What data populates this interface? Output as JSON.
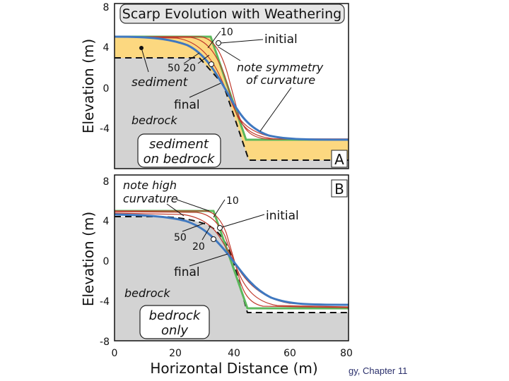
{
  "title": "Scarp Evolution with Weathering",
  "footer": "gy, Chapter 11",
  "x_axis": {
    "label": "Horizontal Distance (m)",
    "ticks": [
      "0",
      "20",
      "40",
      "60",
      "80"
    ]
  },
  "panel_a": {
    "tag": "A",
    "y_label": "Elevation (m)",
    "y_ticks": [
      "8",
      "4",
      "0",
      "-4"
    ],
    "box_label_line1": "sediment",
    "box_label_line2": "on bedrock",
    "labels": {
      "t10": "10",
      "initial": "initial",
      "t50_20": "50 20",
      "sediment": "sediment",
      "note_line1": "note symmetry",
      "note_line2": "of curvature",
      "final": "final",
      "bedrock": "bedrock"
    }
  },
  "panel_b": {
    "tag": "B",
    "y_label": "Elevation (m)",
    "y_ticks": [
      "8",
      "4",
      "0",
      "-4",
      "-8"
    ],
    "box_label_line1": "bedrock",
    "box_label_line2": "only",
    "labels": {
      "note_line1": "note high",
      "note_line2": "curvature",
      "t10": "10",
      "initial": "initial",
      "t50": "50",
      "t20": "20",
      "final": "final",
      "bedrock": "bedrock"
    }
  },
  "colors": {
    "initial_profile": "#5cb85c",
    "intermediate_profile": "#c0392b",
    "final_profile": "#3f78c0",
    "sediment": "#fcd880",
    "bedrock": "#d3d3d3"
  }
}
